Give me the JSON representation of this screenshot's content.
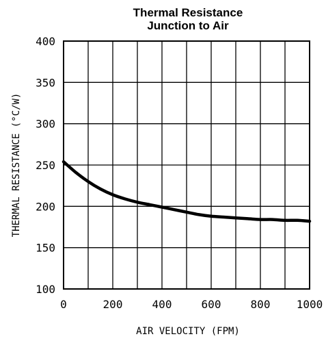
{
  "chart_data": {
    "type": "line",
    "title": "Thermal Resistance",
    "subtitle": "Junction to Air",
    "xlabel": "AIR VELOCITY (FPM)",
    "ylabel": "THERMAL RESISTANCE (°C/W)",
    "xlim": [
      0,
      1000
    ],
    "ylim": [
      100,
      400
    ],
    "grid": true,
    "x_ticks": [
      {
        "value": 0,
        "label": "0"
      },
      {
        "value": 200,
        "label": "200"
      },
      {
        "value": 400,
        "label": "400"
      },
      {
        "value": 600,
        "label": "600"
      },
      {
        "value": 800,
        "label": "800"
      },
      {
        "value": 1000,
        "label": "1000"
      }
    ],
    "y_ticks": [
      {
        "value": 100,
        "label": "100"
      },
      {
        "value": 150,
        "label": "150"
      },
      {
        "value": 200,
        "label": "200"
      },
      {
        "value": 250,
        "label": "250"
      },
      {
        "value": 300,
        "label": "300"
      },
      {
        "value": 350,
        "label": "350"
      },
      {
        "value": 400,
        "label": "400"
      }
    ],
    "x_grid": [
      0,
      100,
      200,
      300,
      400,
      500,
      600,
      700,
      800,
      900,
      1000
    ],
    "y_grid": [
      100,
      150,
      200,
      250,
      300,
      350,
      400
    ],
    "series": [
      {
        "x": [
          0,
          50,
          100,
          150,
          200,
          250,
          300,
          350,
          400,
          450,
          500,
          550,
          600,
          650,
          700,
          750,
          800,
          850,
          900,
          950,
          1000
        ],
        "y": [
          254,
          241,
          230,
          221,
          214,
          209,
          205,
          202,
          199,
          196,
          193,
          190,
          188,
          187,
          186,
          185,
          184,
          184,
          183,
          183,
          182
        ],
        "color": "#000000"
      }
    ]
  }
}
